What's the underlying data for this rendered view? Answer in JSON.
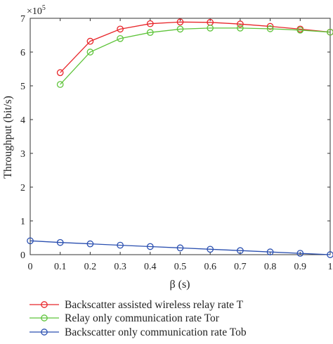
{
  "chart_data": {
    "type": "line",
    "title": "",
    "xlabel": "β (s)",
    "ylabel": "Throughput (bit/s)",
    "y_multiplier": "×10",
    "y_exponent": "5",
    "xlim": [
      0,
      1
    ],
    "ylim": [
      0,
      7
    ],
    "x_ticks": [
      "0",
      "0.1",
      "0.2",
      "0.3",
      "0.4",
      "0.5",
      "0.6",
      "0.7",
      "0.8",
      "0.9",
      "1"
    ],
    "y_ticks": [
      "0",
      "1",
      "2",
      "3",
      "4",
      "5",
      "6",
      "7"
    ],
    "grid": false,
    "legend_position": "bottom",
    "series": [
      {
        "name": "Backscatter assisted wireless relay rate T",
        "color": "#e8262a",
        "x": [
          0.1,
          0.2,
          0.3,
          0.4,
          0.5,
          0.6,
          0.7,
          0.8,
          0.9,
          1.0
        ],
        "y": [
          5.39,
          6.32,
          6.68,
          6.84,
          6.89,
          6.88,
          6.83,
          6.76,
          6.68,
          6.59
        ]
      },
      {
        "name": "Relay only communication rate Tor",
        "color": "#5ec43a",
        "x": [
          0.1,
          0.2,
          0.3,
          0.4,
          0.5,
          0.6,
          0.7,
          0.8,
          0.9,
          1.0
        ],
        "y": [
          5.04,
          6.0,
          6.4,
          6.58,
          6.68,
          6.71,
          6.71,
          6.69,
          6.65,
          6.59
        ]
      },
      {
        "name": "Backscatter only communication rate Tob",
        "color": "#2a4fb0",
        "x": [
          0.0,
          0.1,
          0.2,
          0.3,
          0.4,
          0.5,
          0.6,
          0.7,
          0.8,
          0.9,
          1.0
        ],
        "y": [
          0.41,
          0.36,
          0.32,
          0.28,
          0.24,
          0.2,
          0.16,
          0.12,
          0.08,
          0.04,
          0.0
        ]
      }
    ]
  }
}
